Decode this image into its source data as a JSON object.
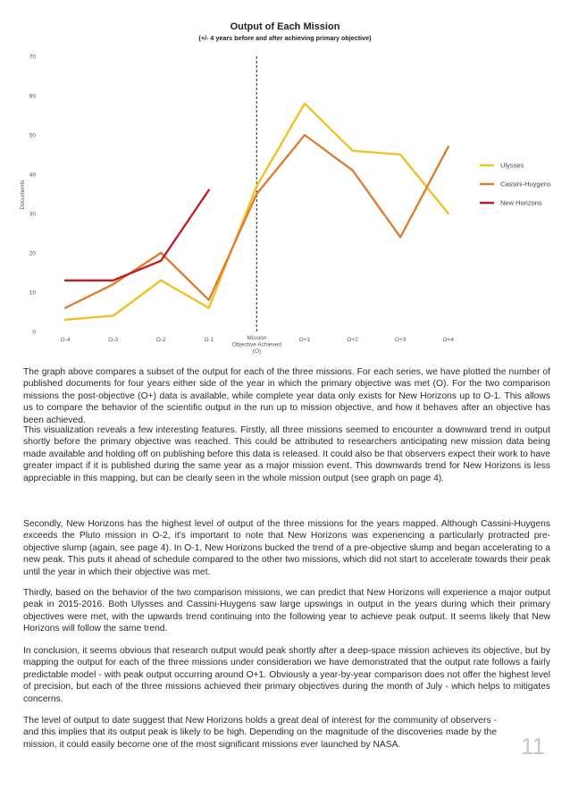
{
  "chart_data": {
    "type": "line",
    "title": "Output of Each Mission",
    "subtitle": "(+/- 4 years before and after achieving primary objective)",
    "ylabel": "Documents",
    "xlabel": "",
    "categories": [
      "O-4",
      "O-3",
      "O-2",
      "O-1",
      "O",
      "O+1",
      "O+2",
      "O+3",
      "O+4"
    ],
    "tick_labels": [
      "O-4",
      "O-3",
      "O-2",
      "O-1",
      "",
      "O+1",
      "O+2",
      "O+3",
      "O+4"
    ],
    "marker_label": [
      "Mission",
      "Objective Achieved",
      "(O)"
    ],
    "ylim": [
      0,
      70
    ],
    "yticks": [
      0,
      10,
      20,
      30,
      40,
      50,
      60,
      70
    ],
    "grid": false,
    "legend_position": "right",
    "series": [
      {
        "name": "Ulysses",
        "color": "#f2c01e",
        "values": [
          3,
          4,
          13,
          6,
          37,
          58,
          46,
          45,
          30
        ]
      },
      {
        "name": "Cassini-Huygens",
        "color": "#e07b2e",
        "values": [
          6,
          12,
          20,
          8,
          35,
          50,
          41,
          24,
          47
        ]
      },
      {
        "name": "New Horizons",
        "color": "#c01a22",
        "values": [
          13,
          13,
          18,
          36,
          null,
          null,
          null,
          null,
          null
        ]
      }
    ]
  },
  "paragraphs": [
    "The graph above compares a subset of the output for each of the three missions. For each series, we have plotted the number of published documents for four years either side of the year in which the primary objective was met (O). For the two comparison missions the post-objective (O+) data is available, while complete year data only exists for New Horizons up to O-1. This allows us to compare the behavior of the scientific output in the run up to mission objective, and how it behaves after an objective has been achieved.",
    "This visualization reveals a few interesting features. Firstly, all three missions seemed to encounter a downward trend in output shortly before the primary objective was reached. This could be attributed to researchers anticipating new mission data being made available and holding off on publishing before this data is released. It could also be that observers expect their work to have greater impact if it is published during the same year as a major mission event. This downwards trend for New Horizons is less appreciable in this mapping, but can be clearly seen in the whole mission output (see graph on page 4).",
    "Secondly, New Horizons has the highest level of output of the three missions for the years mapped. Although Cassini-Huygens exceeds the Pluto mission in O-2, it's important to note that New Horizons was experiencing a particularly protracted pre-objective slump (again, see page 4). In O-1, New Horizons bucked the trend of a pre-objective slump and began accelerating to a new peak. This puts it ahead of schedule compared to the other two missions, which did not start to accelerate towards their peak until the year in which their objective was met.",
    "Thirdly, based on the behavior of the two comparison missions, we can predict that New Horizons will experience a major output peak in 2015-2016. Both Ulysses and Cassini-Huygens saw large upswings in output in the years during which their primary objectives were met, with the upwards trend continuing into the following year to achieve peak output. It seems likely that New Horizons will follow the same trend.",
    "In conclusion, it seems obvious that research output would peak shortly after a deep-space mission achieves its objective, but by mapping the output for each of the three missions under consideration we have demonstrated that the output rate follows a fairly predictable model - with peak output occurring around O+1. Obviously a year-by-year comparison does not offer the highest level of precision, but each of the three missions achieved their primary objectives during the month of July - which helps to mitigates concerns.",
    "The level of output to date suggest that New Horizons holds a great deal of interest for the community of observers - and this implies that its output peak is likely to be high. Depending on the magnitude of the discoveries made by the mission, it could easily become one of the most significant missions ever launched by NASA."
  ],
  "page_number": "11"
}
